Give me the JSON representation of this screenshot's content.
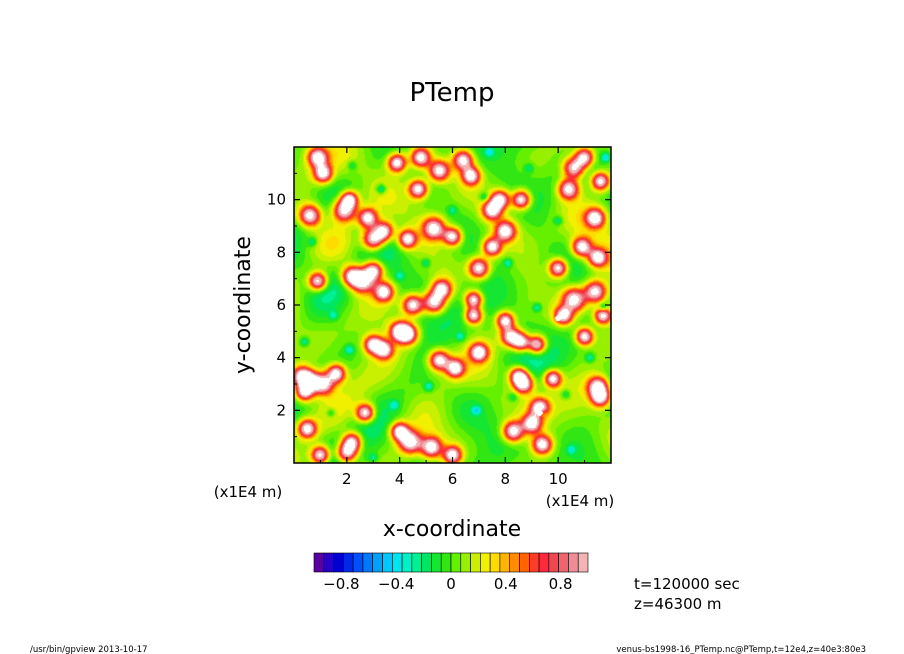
{
  "chart_data": {
    "type": "heatmap",
    "title": "PTemp",
    "xlabel": "x-coordinate",
    "ylabel": "y-coordinate",
    "x_unit_label": "(x1E4 m)",
    "y_unit_label": "(x1E4 m)",
    "xlim": [
      0,
      12
    ],
    "ylim": [
      0,
      12
    ],
    "x_ticks": [
      2,
      4,
      6,
      8,
      10
    ],
    "y_ticks": [
      2,
      4,
      6,
      8,
      10
    ],
    "color_range": [
      -1.0,
      1.0
    ],
    "colorbar_ticks": [
      "−0.8",
      "−0.4",
      "0",
      "0.4",
      "0.8"
    ],
    "colorbar_tick_values": [
      -0.8,
      -0.4,
      0,
      0.4,
      0.8
    ],
    "colors": [
      "#5a00a0",
      "#2800c8",
      "#0000d2",
      "#0028e6",
      "#0050ff",
      "#0078ff",
      "#00a0ff",
      "#00c8ff",
      "#00e6f0",
      "#00f0c8",
      "#00f096",
      "#00e664",
      "#14e632",
      "#32e614",
      "#64f000",
      "#96f000",
      "#c8f000",
      "#f0f000",
      "#ffdc00",
      "#ffb400",
      "#ff8c00",
      "#ff6400",
      "#ff3c28",
      "#ff283c",
      "#f04650",
      "#f0646e",
      "#f08c96",
      "#f4b4b4"
    ],
    "background_level": 0.05,
    "warm_blobs": [
      [
        0.6,
        9.4,
        0.8
      ],
      [
        0.9,
        11.6,
        0.6
      ],
      [
        1.1,
        11.0,
        0.5
      ],
      [
        1.9,
        9.6,
        0.9
      ],
      [
        2.8,
        9.3,
        0.6
      ],
      [
        3.0,
        8.5,
        0.8
      ],
      [
        3.4,
        8.8,
        0.6
      ],
      [
        3.0,
        7.3,
        0.6
      ],
      [
        2.6,
        6.9,
        0.9
      ],
      [
        2.2,
        7.1,
        0.7
      ],
      [
        3.4,
        6.5,
        0.6
      ],
      [
        0.9,
        6.9,
        0.5
      ],
      [
        4.3,
        8.5,
        0.5
      ],
      [
        4.8,
        11.6,
        0.6
      ],
      [
        5.5,
        11.1,
        0.7
      ],
      [
        6.4,
        11.5,
        0.7
      ],
      [
        6.7,
        10.9,
        0.5
      ],
      [
        4.7,
        10.4,
        0.5
      ],
      [
        5.3,
        8.9,
        0.9
      ],
      [
        6.0,
        8.6,
        0.5
      ],
      [
        7.0,
        7.4,
        0.7
      ],
      [
        7.5,
        8.2,
        0.5
      ],
      [
        8.0,
        8.8,
        0.7
      ],
      [
        7.5,
        9.6,
        0.6
      ],
      [
        7.8,
        10.0,
        0.5
      ],
      [
        8.6,
        10.0,
        0.5
      ],
      [
        10.6,
        11.2,
        0.8
      ],
      [
        10.4,
        10.4,
        0.7
      ],
      [
        11.6,
        10.7,
        0.5
      ],
      [
        11.4,
        9.3,
        0.6
      ],
      [
        10.0,
        7.4,
        0.5
      ],
      [
        10.9,
        8.2,
        0.6
      ],
      [
        11.5,
        7.8,
        0.5
      ],
      [
        10.6,
        6.2,
        1.0
      ],
      [
        11.4,
        6.5,
        0.8
      ],
      [
        10.2,
        5.6,
        0.5
      ],
      [
        5.3,
        6.1,
        0.8
      ],
      [
        5.6,
        6.6,
        0.6
      ],
      [
        4.5,
        6.0,
        0.7
      ],
      [
        4.0,
        5.0,
        0.6
      ],
      [
        4.3,
        4.9,
        0.7
      ],
      [
        3.0,
        4.5,
        0.5
      ],
      [
        3.4,
        4.3,
        0.5
      ],
      [
        5.5,
        3.9,
        0.7
      ],
      [
        6.1,
        3.6,
        0.5
      ],
      [
        7.0,
        4.2,
        0.5
      ],
      [
        8.2,
        4.8,
        0.6
      ],
      [
        8.6,
        4.6,
        0.5
      ],
      [
        9.2,
        4.5,
        0.5
      ],
      [
        6.8,
        5.6,
        0.4
      ],
      [
        6.8,
        6.2,
        0.4
      ],
      [
        8.0,
        5.4,
        0.4
      ],
      [
        0.3,
        3.3,
        0.6
      ],
      [
        0.6,
        3.1,
        0.6
      ],
      [
        1.1,
        3.0,
        0.8
      ],
      [
        1.6,
        3.4,
        0.5
      ],
      [
        0.4,
        2.7,
        0.5
      ],
      [
        2.7,
        1.9,
        0.5
      ],
      [
        2.2,
        0.8,
        0.6
      ],
      [
        2.0,
        0.4,
        0.7
      ],
      [
        1.0,
        0.3,
        0.5
      ],
      [
        0.5,
        1.3,
        0.5
      ],
      [
        4.4,
        0.8,
        0.9
      ],
      [
        4.0,
        1.2,
        0.5
      ],
      [
        5.2,
        0.6,
        0.7
      ],
      [
        6.0,
        0.3,
        0.5
      ],
      [
        8.3,
        1.2,
        0.7
      ],
      [
        9.0,
        1.5,
        0.6
      ],
      [
        9.3,
        2.1,
        0.6
      ],
      [
        9.4,
        0.7,
        0.6
      ],
      [
        8.7,
        3.0,
        0.6
      ],
      [
        8.5,
        3.3,
        0.5
      ],
      [
        11.5,
        2.9,
        0.7
      ],
      [
        11.6,
        2.5,
        0.6
      ],
      [
        9.8,
        3.2,
        0.4
      ],
      [
        3.9,
        11.4,
        0.5
      ],
      [
        2.1,
        10.0,
        0.4
      ],
      [
        11.0,
        11.6,
        0.5
      ],
      [
        11.7,
        5.6,
        0.4
      ],
      [
        11.0,
        4.8,
        0.4
      ]
    ],
    "cool_blobs": [
      [
        3.3,
        10.4,
        -0.5
      ],
      [
        8.1,
        7.6,
        -0.4
      ],
      [
        5.1,
        2.9,
        -0.45
      ],
      [
        2.1,
        4.3,
        -0.4
      ],
      [
        11.7,
        5.9,
        -0.5
      ],
      [
        9.4,
        1.9,
        -0.45
      ],
      [
        6.9,
        2.0,
        -0.4
      ],
      [
        3.8,
        2.2,
        -0.35
      ],
      [
        10.0,
        9.2,
        -0.35
      ],
      [
        0.4,
        4.6,
        -0.4
      ],
      [
        7.2,
        10.1,
        -0.4
      ],
      [
        5.0,
        7.6,
        -0.35
      ],
      [
        11.2,
        4.0,
        -0.4
      ],
      [
        1.4,
        1.9,
        -0.35
      ],
      [
        9.2,
        5.9,
        -0.4
      ],
      [
        2.2,
        11.3,
        -0.3
      ],
      [
        6.3,
        4.8,
        -0.35
      ],
      [
        4.0,
        7.1,
        -0.3
      ],
      [
        8.3,
        2.5,
        -0.3
      ],
      [
        11.8,
        11.6,
        -0.5
      ],
      [
        0.7,
        8.4,
        -0.35
      ],
      [
        10.5,
        0.5,
        -0.35
      ],
      [
        3.0,
        0.2,
        -0.3
      ],
      [
        7.4,
        11.8,
        -0.35
      ],
      [
        8.9,
        11.2,
        -0.3
      ],
      [
        6.0,
        9.6,
        -0.3
      ],
      [
        1.5,
        5.6,
        -0.3
      ],
      [
        10.3,
        2.6,
        -0.35
      ]
    ],
    "white_blobs": [
      [
        10.0,
        5.5
      ],
      [
        9.3,
        1.9
      ]
    ]
  },
  "annotations": {
    "time": "t=120000 sec",
    "height": "z=46300 m"
  },
  "footer": {
    "left": "/usr/bin/gpview   2013-10-17",
    "right": "venus-bs1998-16_PTemp.nc@PTemp,t=12e4,z=40e3:80e3"
  }
}
